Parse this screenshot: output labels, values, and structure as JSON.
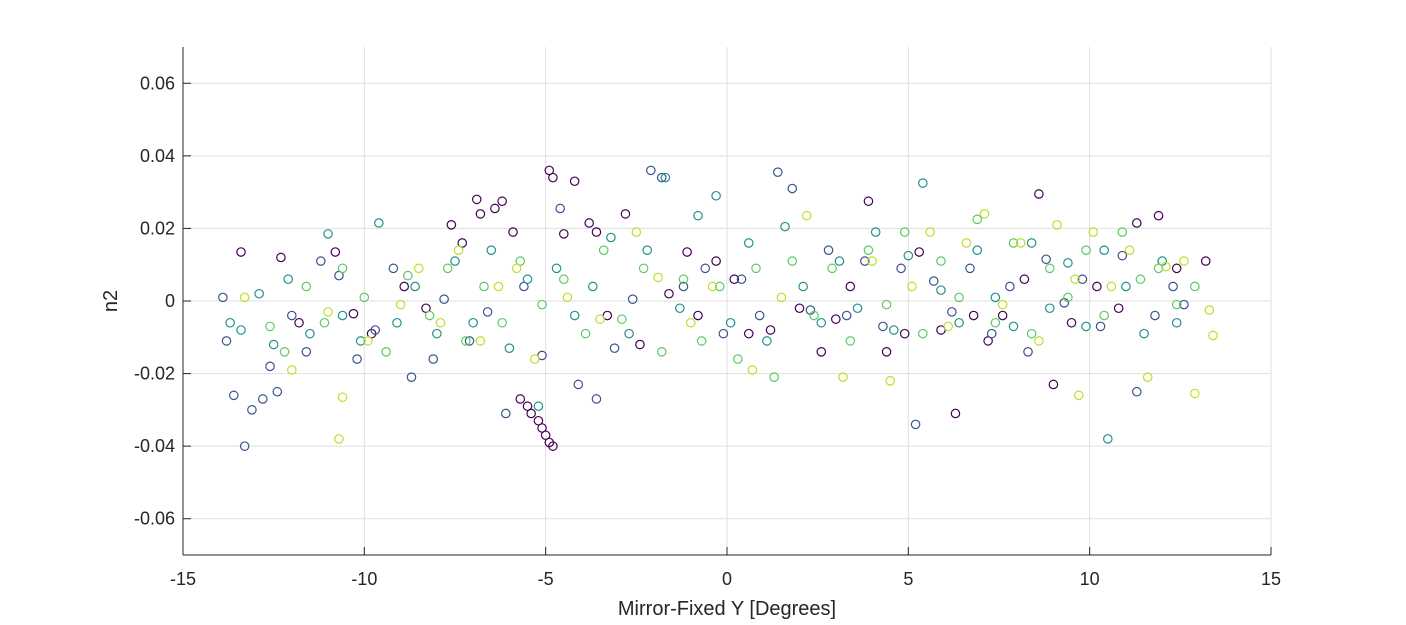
{
  "chart_data": {
    "type": "scatter",
    "title": "",
    "xlabel": "Mirror-Fixed Y [Degrees]",
    "ylabel": "n2",
    "xlim": [
      -15,
      15
    ],
    "ylim": [
      -0.07,
      0.07
    ],
    "xticks": [
      -15,
      -10,
      -5,
      0,
      5,
      10,
      15
    ],
    "yticks": [
      -0.06,
      -0.04,
      -0.02,
      0,
      0.02,
      0.04,
      0.06
    ],
    "xtick_labels": [
      "-15",
      "-10",
      "-5",
      "0",
      "5",
      "10",
      "15"
    ],
    "ytick_labels": [
      "-0.06",
      "-0.04",
      "-0.02",
      "0",
      "0.02",
      "0.04",
      "0.06"
    ],
    "grid": true,
    "legend": false,
    "marker": "open-circle",
    "colormap": [
      "#440154",
      "#3b528b",
      "#21918c",
      "#5ec962",
      "#bddf26"
    ],
    "series": [
      {
        "color_index": 0,
        "points": [
          [
            -13.4,
            0.0135
          ],
          [
            -12.3,
            0.012
          ],
          [
            -11.8,
            -0.006
          ],
          [
            -10.8,
            0.0135
          ],
          [
            -10.3,
            -0.0035
          ],
          [
            -9.8,
            -0.009
          ],
          [
            -8.9,
            0.004
          ],
          [
            -8.3,
            -0.002
          ],
          [
            -7.6,
            0.021
          ],
          [
            -7.3,
            0.016
          ],
          [
            -6.9,
            0.028
          ],
          [
            -6.8,
            0.024
          ],
          [
            -6.4,
            0.0255
          ],
          [
            -6.2,
            0.0275
          ],
          [
            -5.9,
            0.019
          ],
          [
            -5.7,
            -0.027
          ],
          [
            -5.5,
            -0.029
          ],
          [
            -5.4,
            -0.031
          ],
          [
            -5.2,
            -0.033
          ],
          [
            -5.1,
            -0.035
          ],
          [
            -5.0,
            -0.037
          ],
          [
            -4.9,
            -0.039
          ],
          [
            -4.8,
            -0.04
          ],
          [
            -4.9,
            0.036
          ],
          [
            -4.8,
            0.034
          ],
          [
            -4.5,
            0.0185
          ],
          [
            -4.2,
            0.033
          ],
          [
            -3.8,
            0.0215
          ],
          [
            -3.6,
            0.019
          ],
          [
            -3.3,
            -0.004
          ],
          [
            -2.8,
            0.024
          ],
          [
            -2.4,
            -0.012
          ],
          [
            -1.6,
            0.002
          ],
          [
            -1.1,
            0.0135
          ],
          [
            -0.8,
            -0.004
          ],
          [
            -0.3,
            0.011
          ],
          [
            0.2,
            0.006
          ],
          [
            0.6,
            -0.009
          ],
          [
            1.2,
            -0.008
          ],
          [
            2.0,
            -0.002
          ],
          [
            2.6,
            -0.014
          ],
          [
            3.0,
            -0.005
          ],
          [
            3.4,
            0.004
          ],
          [
            3.9,
            0.0275
          ],
          [
            4.4,
            -0.014
          ],
          [
            4.9,
            -0.009
          ],
          [
            5.3,
            0.0135
          ],
          [
            5.9,
            -0.008
          ],
          [
            6.3,
            -0.031
          ],
          [
            6.8,
            -0.004
          ],
          [
            7.2,
            -0.011
          ],
          [
            7.6,
            -0.004
          ],
          [
            8.2,
            0.006
          ],
          [
            8.6,
            0.0295
          ],
          [
            9.0,
            -0.023
          ],
          [
            9.5,
            -0.006
          ],
          [
            10.2,
            0.004
          ],
          [
            10.8,
            -0.002
          ],
          [
            11.3,
            0.0215
          ],
          [
            11.9,
            0.0235
          ],
          [
            12.4,
            0.009
          ],
          [
            13.2,
            0.011
          ]
        ]
      },
      {
        "color_index": 1,
        "points": [
          [
            -13.9,
            0.001
          ],
          [
            -13.8,
            -0.011
          ],
          [
            -13.6,
            -0.026
          ],
          [
            -13.3,
            -0.04
          ],
          [
            -13.1,
            -0.03
          ],
          [
            -12.8,
            -0.027
          ],
          [
            -12.6,
            -0.018
          ],
          [
            -12.4,
            -0.025
          ],
          [
            -12.0,
            -0.004
          ],
          [
            -11.6,
            -0.014
          ],
          [
            -11.2,
            0.011
          ],
          [
            -10.7,
            0.007
          ],
          [
            -10.2,
            -0.016
          ],
          [
            -9.7,
            -0.008
          ],
          [
            -9.2,
            0.009
          ],
          [
            -8.7,
            -0.021
          ],
          [
            -8.1,
            -0.016
          ],
          [
            -7.8,
            0.0005
          ],
          [
            -7.1,
            -0.011
          ],
          [
            -6.6,
            -0.003
          ],
          [
            -6.1,
            -0.031
          ],
          [
            -5.6,
            0.004
          ],
          [
            -5.1,
            -0.015
          ],
          [
            -4.6,
            0.0255
          ],
          [
            -4.1,
            -0.023
          ],
          [
            -3.6,
            -0.027
          ],
          [
            -3.1,
            -0.013
          ],
          [
            -2.6,
            0.0005
          ],
          [
            -2.1,
            0.036
          ],
          [
            -1.8,
            0.034
          ],
          [
            -1.2,
            0.004
          ],
          [
            -0.6,
            0.009
          ],
          [
            -0.1,
            -0.009
          ],
          [
            0.4,
            0.006
          ],
          [
            0.9,
            -0.004
          ],
          [
            1.4,
            0.0355
          ],
          [
            1.8,
            0.031
          ],
          [
            2.3,
            -0.0025
          ],
          [
            2.8,
            0.014
          ],
          [
            3.3,
            -0.004
          ],
          [
            3.8,
            0.011
          ],
          [
            4.3,
            -0.007
          ],
          [
            4.8,
            0.009
          ],
          [
            5.2,
            -0.034
          ],
          [
            5.7,
            0.0055
          ],
          [
            6.2,
            -0.003
          ],
          [
            6.7,
            0.009
          ],
          [
            7.3,
            -0.009
          ],
          [
            7.8,
            0.004
          ],
          [
            8.3,
            -0.014
          ],
          [
            8.8,
            0.0115
          ],
          [
            9.3,
            -0.0005
          ],
          [
            9.8,
            0.006
          ],
          [
            10.3,
            -0.007
          ],
          [
            10.9,
            0.0125
          ],
          [
            11.3,
            -0.025
          ],
          [
            11.8,
            -0.004
          ],
          [
            12.3,
            0.004
          ],
          [
            12.6,
            -0.001
          ]
        ]
      },
      {
        "color_index": 2,
        "points": [
          [
            -13.7,
            -0.006
          ],
          [
            -13.4,
            -0.008
          ],
          [
            -12.9,
            0.002
          ],
          [
            -12.5,
            -0.012
          ],
          [
            -12.1,
            0.006
          ],
          [
            -11.5,
            -0.009
          ],
          [
            -11.0,
            0.0185
          ],
          [
            -10.6,
            -0.004
          ],
          [
            -10.1,
            -0.011
          ],
          [
            -9.6,
            0.0215
          ],
          [
            -9.1,
            -0.006
          ],
          [
            -8.6,
            0.004
          ],
          [
            -8.0,
            -0.009
          ],
          [
            -7.5,
            0.011
          ],
          [
            -7.0,
            -0.006
          ],
          [
            -6.5,
            0.014
          ],
          [
            -6.0,
            -0.013
          ],
          [
            -5.5,
            0.006
          ],
          [
            -5.2,
            -0.029
          ],
          [
            -4.7,
            0.009
          ],
          [
            -4.2,
            -0.004
          ],
          [
            -3.7,
            0.004
          ],
          [
            -3.2,
            0.0175
          ],
          [
            -2.7,
            -0.009
          ],
          [
            -2.2,
            0.014
          ],
          [
            -1.7,
            0.034
          ],
          [
            -1.3,
            -0.002
          ],
          [
            -0.8,
            0.0235
          ],
          [
            -0.3,
            0.029
          ],
          [
            0.1,
            -0.006
          ],
          [
            0.6,
            0.016
          ],
          [
            1.1,
            -0.011
          ],
          [
            1.6,
            0.0205
          ],
          [
            2.1,
            0.004
          ],
          [
            2.6,
            -0.006
          ],
          [
            3.1,
            0.011
          ],
          [
            3.6,
            -0.002
          ],
          [
            4.1,
            0.019
          ],
          [
            4.6,
            -0.008
          ],
          [
            5.0,
            0.0125
          ],
          [
            5.4,
            0.0325
          ],
          [
            5.9,
            0.003
          ],
          [
            6.4,
            -0.006
          ],
          [
            6.9,
            0.014
          ],
          [
            7.4,
            0.001
          ],
          [
            7.9,
            -0.007
          ],
          [
            8.4,
            0.016
          ],
          [
            8.9,
            -0.002
          ],
          [
            9.4,
            0.0105
          ],
          [
            9.9,
            -0.007
          ],
          [
            10.4,
            0.014
          ],
          [
            10.5,
            -0.038
          ],
          [
            11.0,
            0.004
          ],
          [
            11.5,
            -0.009
          ],
          [
            12.0,
            0.011
          ],
          [
            12.4,
            -0.006
          ]
        ]
      },
      {
        "color_index": 3,
        "points": [
          [
            -12.6,
            -0.007
          ],
          [
            -12.2,
            -0.014
          ],
          [
            -11.6,
            0.004
          ],
          [
            -11.1,
            -0.006
          ],
          [
            -10.6,
            0.009
          ],
          [
            -10.0,
            0.001
          ],
          [
            -9.4,
            -0.014
          ],
          [
            -8.8,
            0.007
          ],
          [
            -8.2,
            -0.004
          ],
          [
            -7.7,
            0.009
          ],
          [
            -7.2,
            -0.011
          ],
          [
            -6.7,
            0.004
          ],
          [
            -6.2,
            -0.006
          ],
          [
            -5.7,
            0.011
          ],
          [
            -5.1,
            -0.001
          ],
          [
            -4.5,
            0.006
          ],
          [
            -3.9,
            -0.009
          ],
          [
            -3.4,
            0.014
          ],
          [
            -2.9,
            -0.005
          ],
          [
            -2.3,
            0.009
          ],
          [
            -1.8,
            -0.014
          ],
          [
            -1.2,
            0.006
          ],
          [
            -0.7,
            -0.011
          ],
          [
            -0.2,
            0.004
          ],
          [
            0.3,
            -0.016
          ],
          [
            0.8,
            0.009
          ],
          [
            1.3,
            -0.021
          ],
          [
            1.8,
            0.011
          ],
          [
            2.4,
            -0.004
          ],
          [
            2.9,
            0.009
          ],
          [
            3.4,
            -0.011
          ],
          [
            3.9,
            0.014
          ],
          [
            4.4,
            -0.001
          ],
          [
            4.9,
            0.019
          ],
          [
            5.4,
            -0.009
          ],
          [
            5.9,
            0.011
          ],
          [
            6.4,
            0.001
          ],
          [
            6.9,
            0.0225
          ],
          [
            7.4,
            -0.006
          ],
          [
            7.9,
            0.016
          ],
          [
            8.4,
            -0.009
          ],
          [
            8.9,
            0.009
          ],
          [
            9.4,
            0.001
          ],
          [
            9.9,
            0.014
          ],
          [
            10.4,
            -0.004
          ],
          [
            10.9,
            0.019
          ],
          [
            11.4,
            0.006
          ],
          [
            11.9,
            0.009
          ],
          [
            12.4,
            -0.001
          ],
          [
            12.9,
            0.004
          ]
        ]
      },
      {
        "color_index": 4,
        "points": [
          [
            -13.3,
            0.001
          ],
          [
            -12.0,
            -0.019
          ],
          [
            -11.0,
            -0.003
          ],
          [
            -10.7,
            -0.038
          ],
          [
            -10.6,
            -0.0265
          ],
          [
            -9.9,
            -0.011
          ],
          [
            -9.0,
            -0.001
          ],
          [
            -8.5,
            0.009
          ],
          [
            -7.9,
            -0.006
          ],
          [
            -7.4,
            0.014
          ],
          [
            -6.8,
            -0.011
          ],
          [
            -6.3,
            0.004
          ],
          [
            -5.8,
            0.009
          ],
          [
            -5.3,
            -0.016
          ],
          [
            -4.4,
            0.001
          ],
          [
            -3.5,
            -0.005
          ],
          [
            -2.5,
            0.019
          ],
          [
            -1.9,
            0.0065
          ],
          [
            -1.0,
            -0.006
          ],
          [
            -0.4,
            0.004
          ],
          [
            0.7,
            -0.019
          ],
          [
            1.5,
            0.001
          ],
          [
            2.2,
            0.0235
          ],
          [
            3.2,
            -0.021
          ],
          [
            4.0,
            0.011
          ],
          [
            4.5,
            -0.022
          ],
          [
            5.1,
            0.004
          ],
          [
            5.6,
            0.019
          ],
          [
            6.1,
            -0.007
          ],
          [
            6.6,
            0.016
          ],
          [
            7.1,
            0.024
          ],
          [
            7.6,
            -0.001
          ],
          [
            8.1,
            0.016
          ],
          [
            8.6,
            -0.011
          ],
          [
            9.1,
            0.021
          ],
          [
            9.6,
            0.006
          ],
          [
            9.7,
            -0.026
          ],
          [
            10.1,
            0.019
          ],
          [
            10.6,
            0.004
          ],
          [
            11.1,
            0.014
          ],
          [
            11.6,
            -0.021
          ],
          [
            12.1,
            0.0095
          ],
          [
            12.6,
            0.011
          ],
          [
            12.9,
            -0.0255
          ],
          [
            13.3,
            -0.0025
          ],
          [
            13.4,
            -0.0095
          ]
        ]
      }
    ]
  }
}
